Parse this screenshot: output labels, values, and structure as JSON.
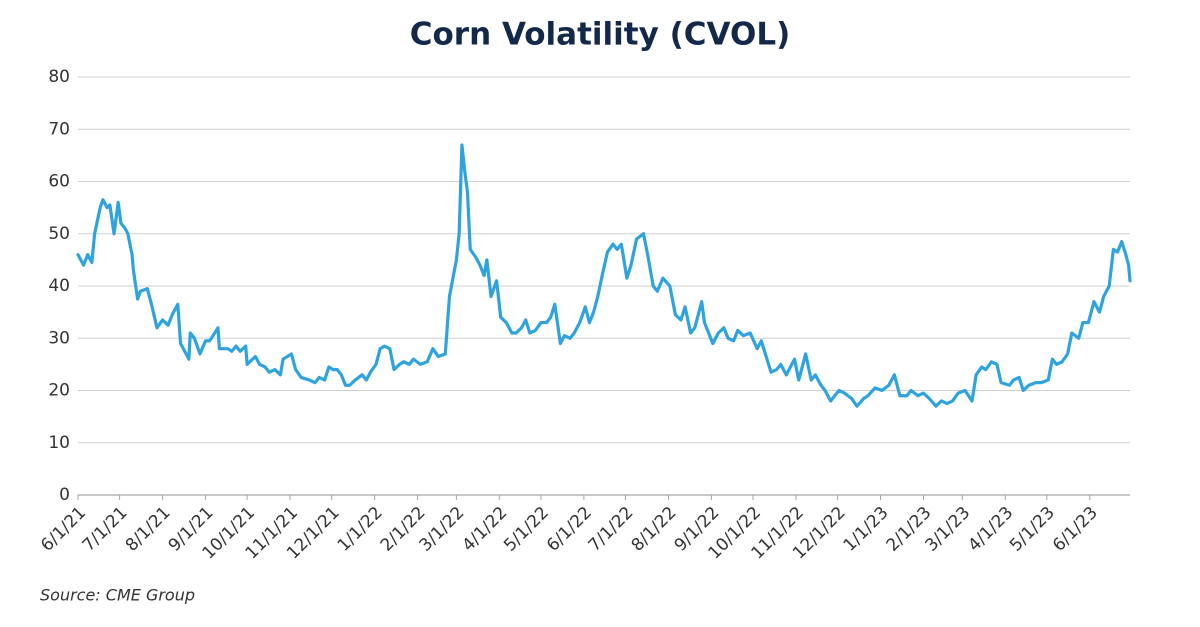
{
  "chart_data": {
    "type": "line",
    "title": "Corn Volatility (CVOL)",
    "source": "Source: CME Group",
    "color": "#2ea3dd",
    "grid": true,
    "ylim": [
      0,
      80
    ],
    "yticks": [
      0,
      10,
      20,
      30,
      40,
      50,
      60,
      70,
      80
    ],
    "xlim": [
      "2021-06-01",
      "2023-06-30"
    ],
    "xticks": [
      {
        "value": "2021-06-01",
        "label": "6/1/21"
      },
      {
        "value": "2021-07-01",
        "label": "7/1/21"
      },
      {
        "value": "2021-08-01",
        "label": "8/1/21"
      },
      {
        "value": "2021-09-01",
        "label": "9/1/21"
      },
      {
        "value": "2021-10-01",
        "label": "10/1/21"
      },
      {
        "value": "2021-11-01",
        "label": "11/1/21"
      },
      {
        "value": "2021-12-01",
        "label": "12/1/21"
      },
      {
        "value": "2022-01-01",
        "label": "1/1/22"
      },
      {
        "value": "2022-02-01",
        "label": "2/1/22"
      },
      {
        "value": "2022-03-01",
        "label": "3/1/22"
      },
      {
        "value": "2022-04-01",
        "label": "4/1/22"
      },
      {
        "value": "2022-05-01",
        "label": "5/1/22"
      },
      {
        "value": "2022-06-01",
        "label": "6/1/22"
      },
      {
        "value": "2022-07-01",
        "label": "7/1/22"
      },
      {
        "value": "2022-08-01",
        "label": "8/1/22"
      },
      {
        "value": "2022-09-01",
        "label": "9/1/22"
      },
      {
        "value": "2022-10-01",
        "label": "10/1/22"
      },
      {
        "value": "2022-11-01",
        "label": "11/1/22"
      },
      {
        "value": "2022-12-01",
        "label": "12/1/22"
      },
      {
        "value": "2023-01-01",
        "label": "1/1/23"
      },
      {
        "value": "2023-02-01",
        "label": "2/1/23"
      },
      {
        "value": "2023-03-01",
        "label": "3/1/23"
      },
      {
        "value": "2023-04-01",
        "label": "4/1/23"
      },
      {
        "value": "2023-05-01",
        "label": "5/1/23"
      },
      {
        "value": "2023-06-01",
        "label": "6/1/23"
      }
    ],
    "x": [
      "2021-06-01",
      "2021-06-05",
      "2021-06-08",
      "2021-06-11",
      "2021-06-13",
      "2021-06-17",
      "2021-06-19",
      "2021-06-22",
      "2021-06-24",
      "2021-06-27",
      "2021-06-30",
      "2021-07-02",
      "2021-07-05",
      "2021-07-07",
      "2021-07-10",
      "2021-07-11",
      "2021-07-14",
      "2021-07-16",
      "2021-07-21",
      "2021-07-24",
      "2021-07-28",
      "2021-08-01",
      "2021-08-05",
      "2021-08-08",
      "2021-08-12",
      "2021-08-14",
      "2021-08-17",
      "2021-08-20",
      "2021-08-21",
      "2021-08-24",
      "2021-08-28",
      "2021-09-01",
      "2021-09-04",
      "2021-09-10",
      "2021-09-11",
      "2021-09-17",
      "2021-09-20",
      "2021-09-23",
      "2021-09-26",
      "2021-09-30",
      "2021-10-01",
      "2021-10-07",
      "2021-10-10",
      "2021-10-14",
      "2021-10-17",
      "2021-10-21",
      "2021-10-25",
      "2021-10-27",
      "2021-11-02",
      "2021-11-05",
      "2021-11-09",
      "2021-11-15",
      "2021-11-19",
      "2021-11-22",
      "2021-11-26",
      "2021-11-29",
      "2021-12-02",
      "2021-12-05",
      "2021-12-08",
      "2021-12-11",
      "2021-12-14",
      "2021-12-18",
      "2021-12-23",
      "2021-12-26",
      "2021-12-29",
      "2022-01-02",
      "2022-01-05",
      "2022-01-08",
      "2022-01-12",
      "2022-01-15",
      "2022-01-19",
      "2022-01-22",
      "2022-01-26",
      "2022-01-29",
      "2022-02-03",
      "2022-02-08",
      "2022-02-12",
      "2022-02-16",
      "2022-02-21",
      "2022-02-24",
      "2022-03-01",
      "2022-03-03",
      "2022-03-05",
      "2022-03-07",
      "2022-03-09",
      "2022-03-11",
      "2022-03-15",
      "2022-03-18",
      "2022-03-21",
      "2022-03-23",
      "2022-03-26",
      "2022-03-30",
      "2022-04-02",
      "2022-04-06",
      "2022-04-10",
      "2022-04-13",
      "2022-04-17",
      "2022-04-20",
      "2022-04-23",
      "2022-04-27",
      "2022-05-01",
      "2022-05-05",
      "2022-05-08",
      "2022-05-11",
      "2022-05-15",
      "2022-05-18",
      "2022-05-22",
      "2022-05-25",
      "2022-05-29",
      "2022-06-02",
      "2022-06-05",
      "2022-06-08",
      "2022-06-11",
      "2022-06-15",
      "2022-06-18",
      "2022-06-22",
      "2022-06-25",
      "2022-06-28",
      "2022-07-02",
      "2022-07-05",
      "2022-07-09",
      "2022-07-14",
      "2022-07-17",
      "2022-07-21",
      "2022-07-24",
      "2022-07-28",
      "2022-08-02",
      "2022-08-06",
      "2022-08-10",
      "2022-08-13",
      "2022-08-17",
      "2022-08-20",
      "2022-08-25",
      "2022-08-27",
      "2022-09-02",
      "2022-09-06",
      "2022-09-10",
      "2022-09-13",
      "2022-09-17",
      "2022-09-20",
      "2022-09-24",
      "2022-09-29",
      "2022-10-04",
      "2022-10-07",
      "2022-10-14",
      "2022-10-18",
      "2022-10-21",
      "2022-10-25",
      "2022-10-31",
      "2022-11-03",
      "2022-11-08",
      "2022-11-12",
      "2022-11-15",
      "2022-11-19",
      "2022-11-22",
      "2022-11-26",
      "2022-12-02",
      "2022-12-06",
      "2022-12-11",
      "2022-12-15",
      "2022-12-20",
      "2022-12-23",
      "2022-12-28",
      "2023-01-02",
      "2023-01-07",
      "2023-01-11",
      "2023-01-15",
      "2023-01-20",
      "2023-01-23",
      "2023-01-28",
      "2023-02-01",
      "2023-02-05",
      "2023-02-10",
      "2023-02-14",
      "2023-02-18",
      "2023-02-22",
      "2023-02-26",
      "2023-03-03",
      "2023-03-08",
      "2023-03-11",
      "2023-03-15",
      "2023-03-18",
      "2023-03-22",
      "2023-03-26",
      "2023-03-29",
      "2023-04-04",
      "2023-04-07",
      "2023-04-11",
      "2023-04-14",
      "2023-04-18",
      "2023-04-23",
      "2023-04-27",
      "2023-05-02",
      "2023-05-05",
      "2023-05-08",
      "2023-05-12",
      "2023-05-16",
      "2023-05-19",
      "2023-05-24",
      "2023-05-27",
      "2023-05-31",
      "2023-06-04",
      "2023-06-08",
      "2023-06-11",
      "2023-06-15",
      "2023-06-18",
      "2023-06-21",
      "2023-06-24",
      "2023-06-27",
      "2023-06-29",
      "2023-06-30"
    ],
    "values": [
      46,
      44,
      46,
      44.5,
      50,
      55,
      56.5,
      55,
      55.5,
      50,
      56,
      52,
      51,
      50,
      46,
      43,
      37.5,
      39,
      39.5,
      36.5,
      32,
      33.5,
      32.5,
      34.5,
      36.5,
      29,
      27.5,
      26,
      31,
      30,
      27,
      29.5,
      29.5,
      32,
      28,
      28,
      27.5,
      28.5,
      27.5,
      28.5,
      25,
      26.5,
      25,
      24.5,
      23.5,
      24,
      23,
      26,
      27,
      24,
      22.5,
      22,
      21.5,
      22.5,
      22,
      24.5,
      24,
      24,
      23,
      21,
      21,
      22,
      23,
      22,
      23.5,
      25,
      28,
      28.5,
      28,
      24,
      25,
      25.5,
      25,
      26,
      25,
      25.5,
      28,
      26.5,
      27,
      38,
      45,
      50,
      67,
      62,
      58,
      47,
      45.5,
      44,
      42,
      45,
      38,
      41,
      34,
      33,
      31,
      31,
      32,
      33.5,
      31,
      31.5,
      33,
      33,
      34,
      36.5,
      29,
      30.5,
      30,
      31,
      33,
      36,
      33,
      35,
      38,
      43,
      46.5,
      48,
      47,
      48,
      41.5,
      44,
      49,
      50,
      46,
      40,
      39,
      41.5,
      40,
      34.5,
      33.5,
      36,
      31,
      32,
      37,
      33,
      29,
      31,
      32,
      30,
      29.5,
      31.5,
      30.5,
      31,
      28,
      29.5,
      23.5,
      24,
      25,
      23,
      26,
      22,
      27,
      22,
      23,
      21,
      20,
      18,
      20,
      19.5,
      18.5,
      17,
      18.5,
      19,
      20.5,
      20,
      21,
      23,
      19,
      19,
      20,
      19,
      19.5,
      18.5,
      17,
      18,
      17.5,
      18,
      19.5,
      20,
      18,
      23,
      24.5,
      24,
      25.5,
      25,
      21.5,
      21,
      22,
      22.5,
      20,
      21,
      21.5,
      21.5,
      22,
      26,
      25,
      25.5,
      27,
      31,
      30,
      33,
      33,
      37,
      35,
      38,
      40,
      47,
      46.5,
      48.5,
      46,
      44,
      41
    ]
  }
}
